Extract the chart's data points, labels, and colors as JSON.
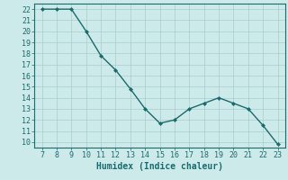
{
  "x": [
    7,
    8,
    9,
    10,
    11,
    12,
    13,
    14,
    15,
    16,
    17,
    18,
    19,
    20,
    21,
    22,
    23
  ],
  "y": [
    22,
    22,
    22,
    20,
    17.8,
    16.5,
    14.8,
    13,
    11.7,
    12,
    13,
    13.5,
    14,
    13.5,
    13,
    11.5,
    9.8
  ],
  "xlim": [
    6.5,
    23.5
  ],
  "ylim": [
    9.5,
    22.5
  ],
  "xticks": [
    7,
    8,
    9,
    10,
    11,
    12,
    13,
    14,
    15,
    16,
    17,
    18,
    19,
    20,
    21,
    22,
    23
  ],
  "yticks": [
    10,
    11,
    12,
    13,
    14,
    15,
    16,
    17,
    18,
    19,
    20,
    21,
    22
  ],
  "xlabel": "Humidex (Indice chaleur)",
  "line_color": "#1a6b6b",
  "marker_color": "#1a6b6b",
  "bg_color": "#cceaea",
  "grid_color": "#aacccc",
  "tick_color": "#1a6b6b",
  "xlabel_color": "#1a6b6b",
  "spine_color": "#1a6b6b",
  "font_size_ticks": 6,
  "font_size_xlabel": 7
}
